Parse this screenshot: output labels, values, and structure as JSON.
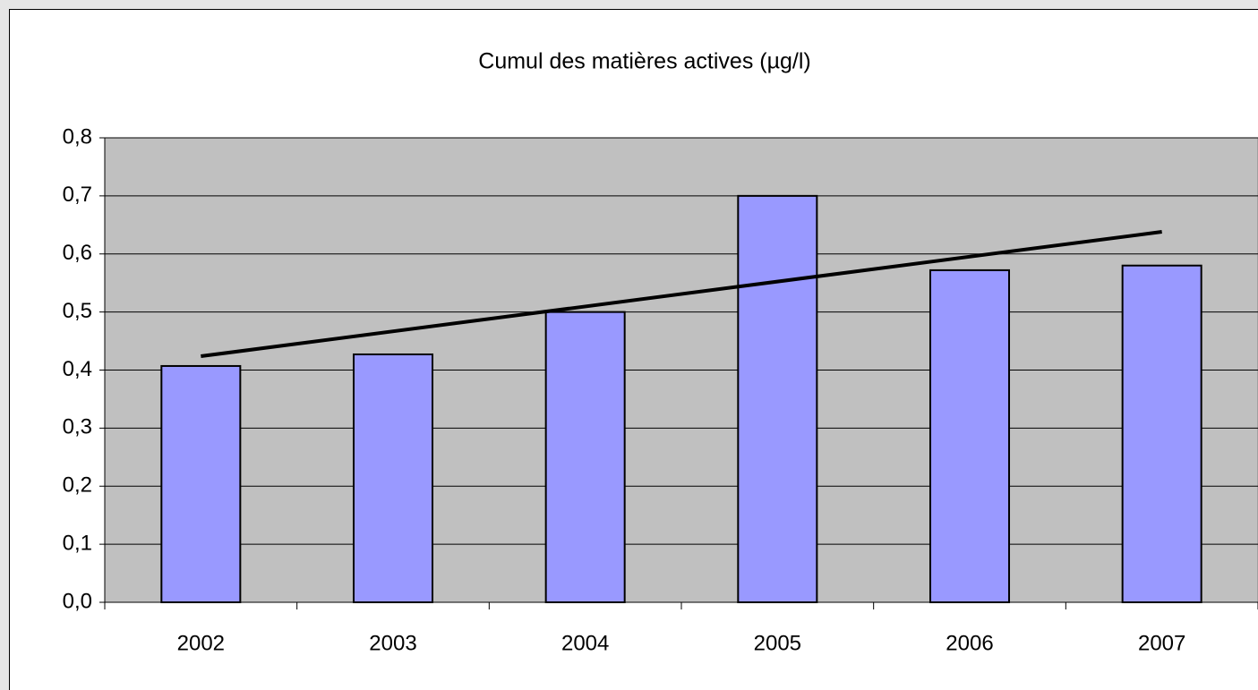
{
  "chart_data": {
    "type": "bar",
    "title": "Cumul des matières actives (µg/l)",
    "categories": [
      "2002",
      "2003",
      "2004",
      "2005",
      "2006",
      "2007"
    ],
    "values": [
      0.407,
      0.427,
      0.5,
      0.7,
      0.572,
      0.58
    ],
    "color": "#9999ff",
    "trendline": "linear",
    "ylim": [
      0,
      0.8
    ],
    "yticks": [
      {
        "value": 0,
        "label": "0,0"
      },
      {
        "value": 0.1,
        "label": "0,1"
      },
      {
        "value": 0.2,
        "label": "0,2"
      },
      {
        "value": 0.3,
        "label": "0,3"
      },
      {
        "value": 0.4,
        "label": "0,4"
      },
      {
        "value": 0.5,
        "label": "0,5"
      },
      {
        "value": 0.6,
        "label": "0,6"
      },
      {
        "value": 0.7,
        "label": "0,7"
      },
      {
        "value": 0.8,
        "label": "0,8"
      }
    ],
    "grid": true
  }
}
